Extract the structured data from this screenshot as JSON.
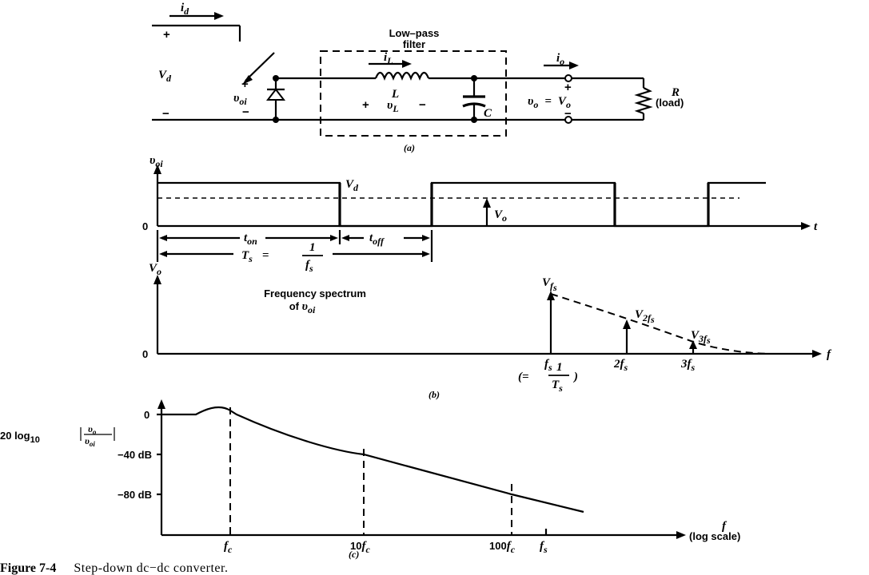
{
  "figure": {
    "caption_number": "Figure 7-4",
    "caption_text": "Step-down dc−dc converter."
  },
  "circuit": {
    "label_id": "i",
    "label_id_sub": "d",
    "label_vd": "V",
    "label_vd_sub": "d",
    "label_plus_source": "+",
    "label_minus_source": "−",
    "label_voi": "υ",
    "label_voi_sub": "oi",
    "label_voi_plus": "+",
    "label_voi_minus": "−",
    "filter_title_1": "Low–pass",
    "filter_title_2": "filter",
    "label_il": "i",
    "label_il_sub": "L",
    "label_L": "L",
    "label_vl_plus": "+",
    "label_vl": "υ",
    "label_vl_sub": "L",
    "label_vl_minus": "−",
    "label_C": "C",
    "label_io": "i",
    "label_io_sub": "o",
    "label_vo_plus": "+",
    "label_vo_minus": "−",
    "label_vo": "υ",
    "label_vo_sub": "o",
    "label_vo_eq": "=",
    "label_Vo": "V",
    "label_Vo_sub": "o",
    "label_R": "R",
    "label_load": "(load)",
    "sub_caption": "(a)"
  },
  "waveform": {
    "y_label": "υ",
    "y_label_sub": "oi",
    "level_label": "V",
    "level_label_sub": "d",
    "avg_label": "V",
    "avg_label_sub": "o",
    "zero_label": "0",
    "x_label": "t",
    "ton_label": "t",
    "ton_sub": "on",
    "toff_label": "t",
    "toff_sub": "off",
    "ts_label": "T",
    "ts_sub": "s",
    "ts_eq": "=",
    "ts_num": "1",
    "ts_den": "f",
    "ts_den_sub": "s"
  },
  "spectrum": {
    "y_label": "V",
    "y_label_sub": "o",
    "zero_label": "0",
    "x_label": "f",
    "title_1": "Frequency spectrum",
    "title_2_pre": "of ",
    "title_2_var": "υ",
    "title_2_sub": "oi",
    "peak1_label": "V",
    "peak1_sub": "f",
    "peak1_subsub": "s",
    "peak2_label": "V",
    "peak2_sub": "2f",
    "peak2_subsub": "s",
    "peak3_label": "V",
    "peak3_sub": "3f",
    "peak3_subsub": "s",
    "tick_fs": "f",
    "tick_fs_sub": "s",
    "tick_2fs": "2f",
    "tick_2fs_sub": "s",
    "tick_3fs": "3f",
    "tick_3fs_sub": "s",
    "fs_eq_pre": "(=",
    "fs_eq_num": "1",
    "fs_eq_den": "T",
    "fs_eq_den_sub": "s",
    "fs_eq_post": ")",
    "sub_caption": "(b)"
  },
  "bode": {
    "y_label_pre": "20 log",
    "y_label_base": "10",
    "y_label_num": "υ",
    "y_label_num_sub": "o",
    "y_label_den": "υ",
    "y_label_den_sub": "oi",
    "tick_0": "0",
    "tick_40": "−40 dB",
    "tick_80": "−80 dB",
    "x_label": "f",
    "x_label_scale": "(log scale)",
    "tick_fc": "f",
    "tick_fc_sub": "c",
    "tick_10fc_pre": "10",
    "tick_10fc": "f",
    "tick_10fc_sub": "c",
    "tick_100fc_pre": "100",
    "tick_100fc": "f",
    "tick_100fc_sub": "c",
    "tick_fs": "f",
    "tick_fs_sub": "s",
    "sub_caption": "(c)"
  }
}
